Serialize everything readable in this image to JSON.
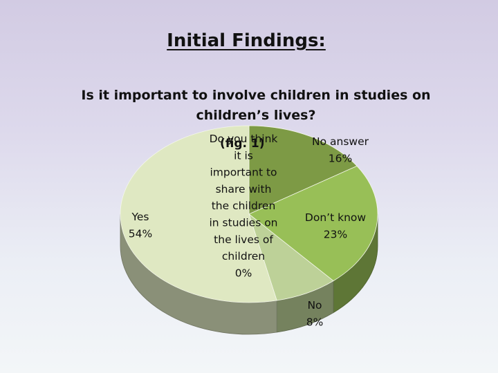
{
  "slide": {
    "title": "Initial Findings:",
    "question": "Is it important to involve  children in studies on children’s lives?",
    "figure_label": "(fig. 1)"
  },
  "chart_data": {
    "type": "pie",
    "title": "Is it important to involve  children in studies on children’s lives?",
    "legend": "none",
    "slices": [
      {
        "name": "No answer",
        "value": 16,
        "label": "16%",
        "color": "#7d9a45"
      },
      {
        "name": "Don’t know",
        "value": 23,
        "label": "23%",
        "color": "#98bf57"
      },
      {
        "name": "No",
        "value": 8,
        "label": "8%",
        "color": "#bdd198"
      },
      {
        "name": "Yes",
        "value": 54,
        "label": "54%",
        "color": "#dfe8c2"
      },
      {
        "name": "Do you think it is important to share with the children in studies on the lives of children",
        "value": 0,
        "label": "0%",
        "color": "#e9efd0"
      }
    ]
  }
}
